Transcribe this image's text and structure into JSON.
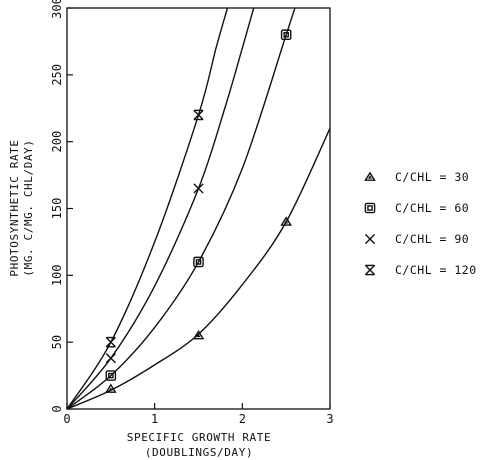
{
  "chart_data": {
    "type": "scatter",
    "title": "",
    "xlabel": "SPECIFIC GROWTH RATE",
    "xlabel_sub": "(DOUBLINGS/DAY)",
    "ylabel": "PHOTOSYNTHETIC RATE",
    "ylabel_sub": "(MG. C/MG. CHL/DAY)",
    "xlim": [
      0,
      3
    ],
    "ylim": [
      0,
      300
    ],
    "xticks": [
      0,
      1,
      2,
      3
    ],
    "yticks": [
      0,
      50,
      100,
      150,
      200,
      250,
      300
    ],
    "grid": false,
    "legend_position": "right",
    "series": [
      {
        "name": "C/CHL = 30",
        "marker": "triangle",
        "x": [
          0.5,
          1.5,
          2.5
        ],
        "y": [
          15,
          55,
          140
        ],
        "curve_x": [
          0,
          0.5,
          1.0,
          1.5,
          2.0,
          2.5,
          3.0
        ],
        "curve_y": [
          0,
          14,
          33,
          56,
          93,
          140,
          210
        ]
      },
      {
        "name": "C/CHL = 60",
        "marker": "square",
        "x": [
          0.5,
          1.5,
          2.5
        ],
        "y": [
          25,
          110,
          280
        ],
        "curve_x": [
          0,
          0.5,
          1.0,
          1.5,
          2.0,
          2.5,
          2.6
        ],
        "curve_y": [
          0,
          25,
          61,
          110,
          180,
          280,
          300
        ]
      },
      {
        "name": "C/CHL = 90",
        "marker": "x",
        "x": [
          0.5,
          1.5
        ],
        "y": [
          38,
          165
        ],
        "curve_x": [
          0,
          0.5,
          1.0,
          1.5,
          1.8,
          2.0,
          2.13
        ],
        "curve_y": [
          0,
          38,
          92,
          165,
          225,
          270,
          300
        ]
      },
      {
        "name": "C/CHL = 120",
        "marker": "hourglass",
        "x": [
          0.5,
          1.5
        ],
        "y": [
          50,
          220
        ],
        "curve_x": [
          0,
          0.5,
          1.0,
          1.5,
          1.7,
          1.83
        ],
        "curve_y": [
          0,
          50,
          125,
          220,
          270,
          300
        ]
      }
    ]
  }
}
